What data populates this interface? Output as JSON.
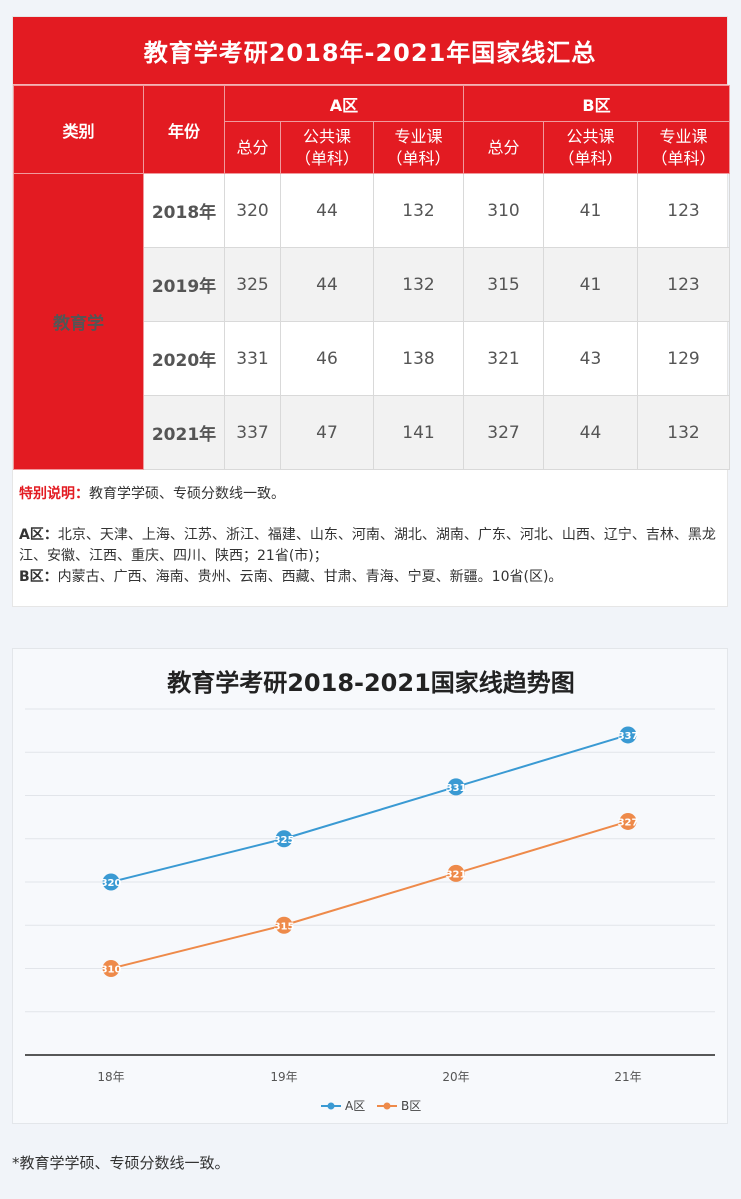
{
  "table": {
    "title": "教育学考研2018年-2021年国家线汇总",
    "headers": {
      "category": "类别",
      "year": "年份",
      "zone_a": "A区",
      "zone_b": "B区",
      "total": "总分",
      "public_line1": "公共课",
      "public_line2": "（单科）",
      "major_line1": "专业课",
      "major_line2": "（单科）"
    },
    "category": "教育学",
    "rows": [
      {
        "year": "2018年",
        "a_total": "320",
        "a_public": "44",
        "a_major": "132",
        "b_total": "310",
        "b_public": "41",
        "b_major": "123"
      },
      {
        "year": "2019年",
        "a_total": "325",
        "a_public": "44",
        "a_major": "132",
        "b_total": "315",
        "b_public": "41",
        "b_major": "123"
      },
      {
        "year": "2020年",
        "a_total": "331",
        "a_public": "46",
        "a_major": "138",
        "b_total": "321",
        "b_public": "43",
        "b_major": "129"
      },
      {
        "year": "2021年",
        "a_total": "337",
        "a_public": "47",
        "a_major": "141",
        "b_total": "327",
        "b_public": "44",
        "b_major": "132"
      }
    ]
  },
  "notes": {
    "special_label": "特别说明：",
    "special_text": "教育学学硕、专硕分数线一致。",
    "a_label": "A区：",
    "a_text": "北京、天津、上海、江苏、浙江、福建、山东、河南、湖北、湖南、广东、河北、山西、辽宁、吉林、黑龙江、安徽、江西、重庆、四川、陕西；21省(市)；",
    "b_label": "B区：",
    "b_text": "内蒙古、广西、海南、贵州、云南、西藏、甘肃、青海、宁夏、新疆。10省(区)。"
  },
  "chart_data": {
    "type": "line",
    "title": "教育学考研2018-2021国家线趋势图",
    "categories": [
      "18年",
      "19年",
      "20年",
      "21年"
    ],
    "series": [
      {
        "name": "A区",
        "values": [
          320,
          325,
          331,
          337
        ],
        "color": "#3a9ad3"
      },
      {
        "name": "B区",
        "values": [
          310,
          315,
          321,
          327
        ],
        "color": "#ee8a4a"
      }
    ],
    "ylim": [
      300,
      340
    ],
    "grid": true,
    "legend_position": "bottom"
  },
  "footnote": "*教育学学硕、专硕分数线一致。"
}
